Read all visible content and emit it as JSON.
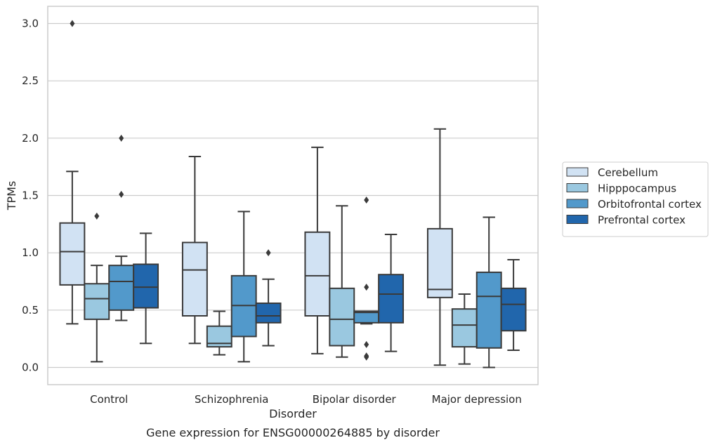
{
  "chart_data": {
    "type": "box",
    "title": "Gene expression for ENSG00000264885 by disorder",
    "xlabel": "Disorder",
    "ylabel": "TPMs",
    "ylim": [
      -0.15,
      3.15
    ],
    "yticks": [
      "0.0",
      "0.5",
      "1.0",
      "1.5",
      "2.0",
      "2.5",
      "3.0"
    ],
    "grid": true,
    "legend_position": "right",
    "categories": [
      "Control",
      "Schizophrenia",
      "Bipolar disorder",
      "Major depression"
    ],
    "series": [
      {
        "name": "Cerebellum",
        "color": "#d1e2f3",
        "boxes": [
          {
            "whisker_low": 0.38,
            "q1": 0.72,
            "median": 1.01,
            "q3": 1.26,
            "whisker_high": 1.71,
            "outliers": [
              3.0
            ]
          },
          {
            "whisker_low": 0.21,
            "q1": 0.45,
            "median": 0.85,
            "q3": 1.09,
            "whisker_high": 1.84,
            "outliers": []
          },
          {
            "whisker_low": 0.12,
            "q1": 0.45,
            "median": 0.8,
            "q3": 1.18,
            "whisker_high": 1.92,
            "outliers": []
          },
          {
            "whisker_low": 0.02,
            "q1": 0.61,
            "median": 0.68,
            "q3": 1.21,
            "whisker_high": 2.08,
            "outliers": []
          }
        ]
      },
      {
        "name": "Hipppocampus",
        "color": "#9ac8e0",
        "boxes": [
          {
            "whisker_low": 0.05,
            "q1": 0.42,
            "median": 0.6,
            "q3": 0.73,
            "whisker_high": 0.89,
            "outliers": [
              1.32
            ]
          },
          {
            "whisker_low": 0.11,
            "q1": 0.18,
            "median": 0.21,
            "q3": 0.36,
            "whisker_high": 0.49,
            "outliers": []
          },
          {
            "whisker_low": 0.09,
            "q1": 0.19,
            "median": 0.42,
            "q3": 0.69,
            "whisker_high": 1.41,
            "outliers": []
          },
          {
            "whisker_low": 0.03,
            "q1": 0.18,
            "median": 0.37,
            "q3": 0.51,
            "whisker_high": 0.64,
            "outliers": []
          }
        ]
      },
      {
        "name": "Orbitofrontal cortex",
        "color": "#5299cb",
        "boxes": [
          {
            "whisker_low": 0.41,
            "q1": 0.5,
            "median": 0.75,
            "q3": 0.89,
            "whisker_high": 0.97,
            "outliers": [
              1.51,
              2.0
            ]
          },
          {
            "whisker_low": 0.05,
            "q1": 0.27,
            "median": 0.54,
            "q3": 0.8,
            "whisker_high": 1.36,
            "outliers": []
          },
          {
            "whisker_low": 0.38,
            "q1": 0.39,
            "median": 0.48,
            "q3": 0.49,
            "whisker_high": 0.49,
            "outliers": [
              0.09,
              0.1,
              0.2,
              0.7,
              1.46
            ]
          },
          {
            "whisker_low": 0.0,
            "q1": 0.17,
            "median": 0.62,
            "q3": 0.83,
            "whisker_high": 1.31,
            "outliers": []
          }
        ]
      },
      {
        "name": "Prefrontal cortex",
        "color": "#2166ac",
        "boxes": [
          {
            "whisker_low": 0.21,
            "q1": 0.52,
            "median": 0.7,
            "q3": 0.9,
            "whisker_high": 1.17,
            "outliers": []
          },
          {
            "whisker_low": 0.19,
            "q1": 0.39,
            "median": 0.45,
            "q3": 0.56,
            "whisker_high": 0.77,
            "outliers": [
              1.0
            ]
          },
          {
            "whisker_low": 0.14,
            "q1": 0.39,
            "median": 0.64,
            "q3": 0.81,
            "whisker_high": 1.16,
            "outliers": []
          },
          {
            "whisker_low": 0.15,
            "q1": 0.32,
            "median": 0.55,
            "q3": 0.69,
            "whisker_high": 0.94,
            "outliers": []
          }
        ]
      }
    ]
  }
}
